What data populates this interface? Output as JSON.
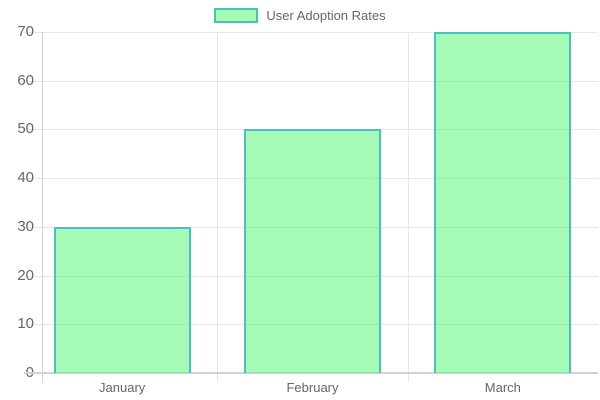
{
  "chart_data": {
    "type": "bar",
    "title": "",
    "legend_label": "User Adoption Rates",
    "legend_position": "top",
    "categories": [
      "January",
      "February",
      "March"
    ],
    "values": [
      30,
      50,
      70
    ],
    "series": [
      {
        "name": "User Adoption Rates",
        "values": [
          30,
          50,
          70
        ]
      }
    ],
    "ylim": [
      0,
      70
    ],
    "ytick_step": 10,
    "yticks": [
      0,
      10,
      20,
      30,
      40,
      50,
      60,
      70
    ],
    "grid": true,
    "colors": {
      "bar_fill": "rgba(75, 245, 110, 0.5)",
      "bar_border": "#4bc0c0",
      "gridline": "#e6e6e6",
      "axis_line": "#d2d2d2",
      "tick_text": "#666666",
      "background": "#ffffff"
    }
  }
}
